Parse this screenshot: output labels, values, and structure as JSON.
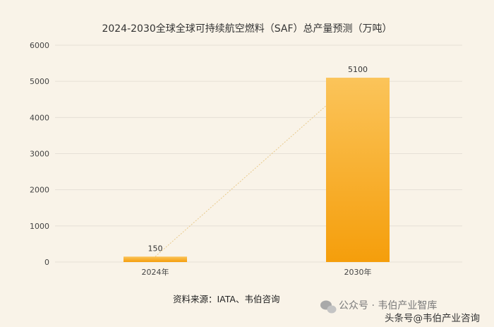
{
  "chart_data": {
    "type": "bar",
    "title": "2024-2030全球全球可持续航空燃料（SAF）总产量预测（万吨）",
    "categories": [
      "2024年",
      "2030年"
    ],
    "values": [
      150,
      5100
    ],
    "data_labels": [
      "150",
      "5100"
    ],
    "ylim": [
      0,
      6000
    ],
    "yticks": [
      0,
      1000,
      2000,
      3000,
      4000,
      5000,
      6000
    ],
    "grid": true,
    "trend_line": true,
    "bar_color": "#f5a623",
    "bar_color_light": "#fbc45a",
    "trend_line_color": "#e8c98a"
  },
  "source": "资料来源：IATA、韦伯咨询",
  "watermark": {
    "icon": "wechat-icon",
    "text": "公众号 · 韦伯产业智库",
    "text2": "头条号@韦伯产业咨询"
  },
  "colors": {
    "background": "#f9f3e8",
    "grid": "#e6e0d6"
  }
}
